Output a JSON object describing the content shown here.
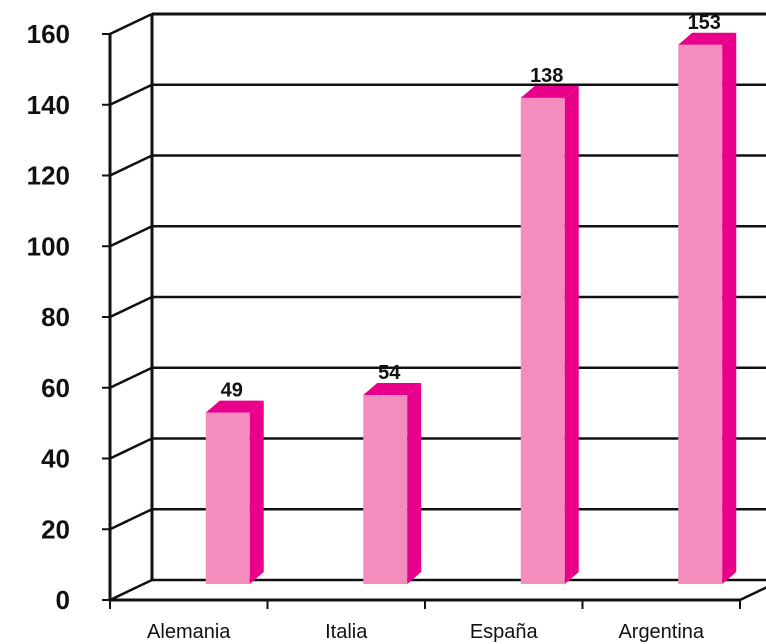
{
  "chart_data": {
    "type": "bar",
    "style": "3d",
    "categories": [
      "Alemania",
      "Italia",
      "España",
      "Argentina"
    ],
    "values": [
      49,
      54,
      138,
      153
    ],
    "ylim": [
      0,
      160
    ],
    "yticks": [
      0,
      20,
      40,
      60,
      80,
      100,
      120,
      140,
      160
    ],
    "ytick_labels": [
      "0",
      "20",
      "40",
      "60",
      "80",
      "100",
      "120",
      "140",
      "160"
    ],
    "grid": true,
    "colors": {
      "bar_front": "#f48cbe",
      "bar_side": "#e8008a",
      "bar_top": "#e8008a",
      "axis": "#111111"
    }
  }
}
